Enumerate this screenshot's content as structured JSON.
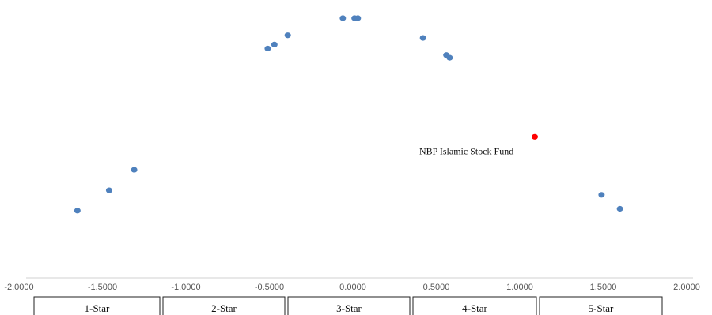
{
  "chart_data": {
    "type": "scatter",
    "title": "",
    "xlabel": "",
    "ylabel": "",
    "xlim": [
      -2.0,
      2.0
    ],
    "ylim": [
      0,
      1
    ],
    "grid": false,
    "x_ticks": [
      "-2.0000",
      "-1.5000",
      "-1.0000",
      "-0.5000",
      "0.0000",
      "0.5000",
      "1.0000",
      "1.5000",
      "2.0000"
    ],
    "series": [
      {
        "color": "#4f81bd",
        "points": [
          {
            "x": -1.65,
            "y": 0.255
          },
          {
            "x": -1.46,
            "y": 0.332
          },
          {
            "x": -1.31,
            "y": 0.41
          },
          {
            "x": -0.51,
            "y": 0.87
          },
          {
            "x": -0.47,
            "y": 0.885
          },
          {
            "x": -0.39,
            "y": 0.92
          },
          {
            "x": -0.06,
            "y": 0.985
          },
          {
            "x": 0.01,
            "y": 0.985
          },
          {
            "x": 0.03,
            "y": 0.985
          },
          {
            "x": 0.42,
            "y": 0.91
          },
          {
            "x": 0.56,
            "y": 0.845
          },
          {
            "x": 0.58,
            "y": 0.835
          },
          {
            "x": 1.49,
            "y": 0.315
          },
          {
            "x": 1.6,
            "y": 0.262
          }
        ]
      },
      {
        "color": "#ff0000",
        "points": [
          {
            "x": 1.09,
            "y": 0.535,
            "label": "NBP Islamic Stock Fund"
          }
        ]
      }
    ],
    "rating_bands": [
      "1-Star",
      "2-Star",
      "3-Star",
      "4-Star",
      "5-Star"
    ]
  }
}
